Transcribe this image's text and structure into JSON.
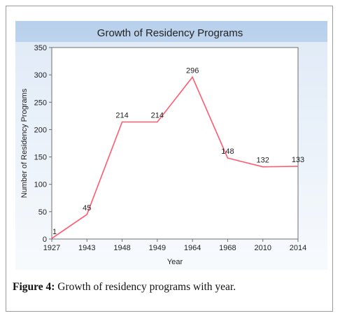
{
  "caption": {
    "label": "Figure 4:",
    "text": " Growth of residency programs with year."
  },
  "chart_data": {
    "type": "line",
    "title": "Growth of Residency Programs",
    "xlabel": "Year",
    "ylabel": "Number of Residency Programs",
    "categories": [
      "1927",
      "1943",
      "1948",
      "1949",
      "1964",
      "1968",
      "2010",
      "2014"
    ],
    "values": [
      1,
      45,
      214,
      214,
      296,
      148,
      132,
      133
    ],
    "data_labels": [
      "1",
      "45",
      "214",
      "214",
      "296",
      "148",
      "132",
      "133"
    ],
    "ylim": [
      0,
      350
    ],
    "yticks": [
      0,
      50,
      100,
      150,
      200,
      250,
      300,
      350
    ],
    "grid": false,
    "line_color": "#ff5a6e",
    "header_gradient_top": "#b8d0ec",
    "header_gradient_bottom": "#eef4fb"
  }
}
